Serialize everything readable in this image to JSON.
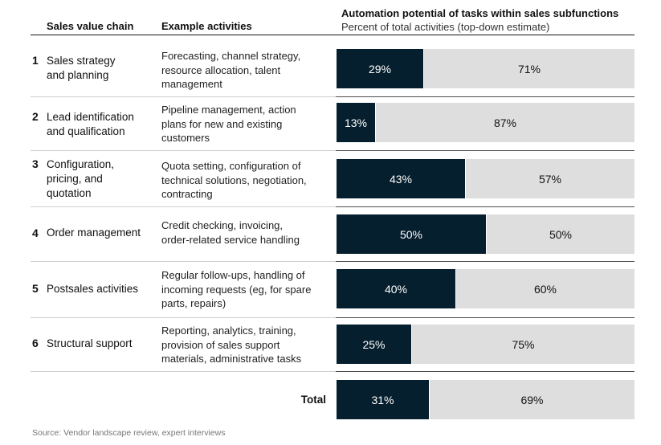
{
  "headers": {
    "chain": "Sales value chain",
    "activities": "Example activities",
    "chart_title": "Automation potential of tasks within sales subfunctions",
    "chart_subtitle": "Percent of total activities (top-down estimate)"
  },
  "rows": [
    {
      "num": "1",
      "chain_lines": [
        "Sales strategy",
        "and planning"
      ],
      "activity_lines": [
        "Forecasting, channel strategy,",
        "resource allocation, talent",
        "management"
      ]
    },
    {
      "num": "2",
      "chain_lines": [
        "Lead identification",
        "and qualification"
      ],
      "activity_lines": [
        "Pipeline management, action",
        "plans for new and existing",
        "customers"
      ]
    },
    {
      "num": "3",
      "chain_lines": [
        "Configuration,",
        "pricing, and",
        "quotation"
      ],
      "activity_lines": [
        "Quota setting, configuration of",
        "technical solutions, negotiation,",
        "contracting"
      ]
    },
    {
      "num": "4",
      "chain_lines": [
        "Order management"
      ],
      "activity_lines": [
        "Credit checking, invoicing,",
        "order-related service handling"
      ]
    },
    {
      "num": "5",
      "chain_lines": [
        "Postsales activities"
      ],
      "activity_lines": [
        "Regular follow-ups, handling of",
        "incoming requests (eg, for spare",
        "parts, repairs)"
      ]
    },
    {
      "num": "6",
      "chain_lines": [
        "Structural support"
      ],
      "activity_lines": [
        "Reporting, analytics, training,",
        "provision of sales support",
        "materials, administrative tasks"
      ]
    }
  ],
  "total_label": "Total",
  "source": "Source: Vendor landscape review, expert interviews",
  "colors": {
    "automated": "#061f2e",
    "remaining": "#dedede"
  },
  "chart_data": {
    "type": "bar",
    "orientation": "horizontal",
    "stacked": true,
    "title": "Automation potential of tasks within sales subfunctions",
    "subtitle": "Percent of total activities (top-down estimate)",
    "categories": [
      "Sales strategy and planning",
      "Lead identification and qualification",
      "Configuration, pricing, and quotation",
      "Order management",
      "Postsales activities",
      "Structural support",
      "Total"
    ],
    "series": [
      {
        "values": [
          29,
          13,
          43,
          50,
          40,
          25,
          31
        ],
        "labels": [
          "29%",
          "13%",
          "43%",
          "50%",
          "40%",
          "25%",
          "31%"
        ]
      },
      {
        "values": [
          71,
          87,
          57,
          50,
          60,
          75,
          69
        ],
        "labels": [
          "71%",
          "87%",
          "57%",
          "50%",
          "60%",
          "75%",
          "69%"
        ]
      }
    ],
    "xlim": [
      0,
      100
    ],
    "grid": false
  }
}
